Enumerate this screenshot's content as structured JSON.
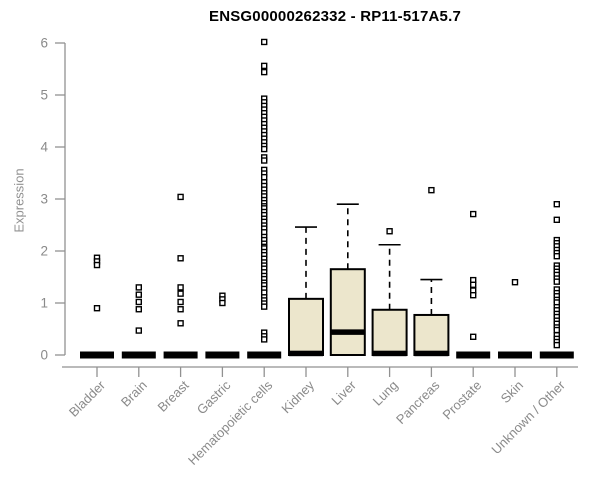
{
  "chart_data": {
    "type": "boxplot",
    "title": "ENSG00000262332 - RP11-517A5.7",
    "xlabel": "",
    "ylabel": "Expression",
    "ylim": [
      0,
      6
    ],
    "y_ticks": [
      0,
      1,
      2,
      3,
      4,
      5,
      6
    ],
    "grid": false,
    "legend": "none",
    "categories": [
      "Bladder",
      "Brain",
      "Breast",
      "Gastric",
      "Hematopoietic cells",
      "Kidney",
      "Liver",
      "Lung",
      "Pancreas",
      "Prostate",
      "Skin",
      "Unknown / Other"
    ],
    "boxes": [
      {
        "label": "Bladder",
        "q1": 0,
        "median": 0,
        "q3": 0,
        "whisker_low": 0,
        "whisker_high": 0,
        "outliers": [
          1.87,
          1.8,
          1.73,
          0.9
        ]
      },
      {
        "label": "Brain",
        "q1": 0,
        "median": 0,
        "q3": 0,
        "whisker_low": 0,
        "whisker_high": 0,
        "outliers": [
          1.3,
          1.16,
          1.02,
          0.88,
          0.47
        ]
      },
      {
        "label": "Breast",
        "q1": 0,
        "median": 0,
        "q3": 0,
        "whisker_low": 0,
        "whisker_high": 0,
        "outliers": [
          3.04,
          1.86,
          1.3,
          1.18,
          1.02,
          0.88,
          0.61
        ]
      },
      {
        "label": "Gastric",
        "q1": 0,
        "median": 0,
        "q3": 0,
        "whisker_low": 0,
        "whisker_high": 0,
        "outliers": [
          1.14,
          1.07,
          1.0
        ]
      },
      {
        "label": "Hematopoietic cells",
        "q1": 0,
        "median": 0,
        "q3": 0,
        "whisker_low": 0,
        "whisker_high": 0,
        "outliers": [
          6.02,
          5.56,
          5.44,
          4.93,
          4.86,
          4.79,
          4.72,
          4.65,
          4.58,
          4.51,
          4.44,
          4.37,
          4.3,
          4.23,
          4.16,
          4.09,
          4.02,
          3.96,
          3.8,
          3.74,
          3.56,
          3.49,
          3.42,
          3.32,
          3.25,
          3.18,
          3.11,
          3.05,
          2.98,
          2.92,
          2.86,
          2.82,
          2.75,
          2.69,
          2.62,
          2.56,
          2.49,
          2.43,
          2.36,
          2.27,
          2.21,
          2.14,
          2.08,
          2.05,
          1.98,
          1.92,
          1.85,
          1.78,
          1.72,
          1.66,
          1.59,
          1.52,
          1.46,
          1.39,
          1.34,
          1.27,
          1.2,
          1.11,
          1.05,
          0.99,
          0.93,
          0.43,
          0.36,
          0.3
        ]
      },
      {
        "label": "Kidney",
        "q1": 0,
        "median": 0.03,
        "q3": 1.08,
        "whisker_low": 0,
        "whisker_high": 2.46,
        "outliers": []
      },
      {
        "label": "Liver",
        "q1": 0,
        "median": 0.44,
        "q3": 1.65,
        "whisker_low": 0,
        "whisker_high": 2.9,
        "outliers": []
      },
      {
        "label": "Lung",
        "q1": 0,
        "median": 0.03,
        "q3": 0.87,
        "whisker_low": 0,
        "whisker_high": 2.12,
        "outliers": [
          2.38
        ]
      },
      {
        "label": "Pancreas",
        "q1": 0,
        "median": 0.03,
        "q3": 0.77,
        "whisker_low": 0,
        "whisker_high": 1.45,
        "outliers": [
          3.17
        ]
      },
      {
        "label": "Prostate",
        "q1": 0,
        "median": 0,
        "q3": 0,
        "whisker_low": 0,
        "whisker_high": 0,
        "outliers": [
          2.71,
          1.44,
          1.35,
          1.24,
          1.15,
          0.35
        ]
      },
      {
        "label": "Skin",
        "q1": 0,
        "median": 0,
        "q3": 0,
        "whisker_low": 0,
        "whisker_high": 0,
        "outliers": [
          1.4
        ]
      },
      {
        "label": "Unknown / Other",
        "q1": 0,
        "median": 0,
        "q3": 0,
        "whisker_low": 0,
        "whisker_high": 0,
        "outliers": [
          2.9,
          2.6,
          2.21,
          2.15,
          2.09,
          2.02,
          1.96,
          1.9,
          1.72,
          1.66,
          1.6,
          1.54,
          1.47,
          1.41,
          1.26,
          1.19,
          1.13,
          1.06,
          1.01,
          0.92,
          0.86,
          0.79,
          0.73,
          0.66,
          0.6,
          0.53,
          0.48,
          0.38,
          0.31,
          0.25,
          0.19
        ]
      }
    ]
  },
  "colors": {
    "box_fill": "#ECE6CC",
    "box_stroke": "#000000",
    "median": "#000000",
    "outlier_stroke": "#000000",
    "outlier_fill": "#ffffff",
    "axis": "#919191",
    "tick_label": "#8a8a8a",
    "title": "#000000",
    "background": "#ffffff"
  }
}
